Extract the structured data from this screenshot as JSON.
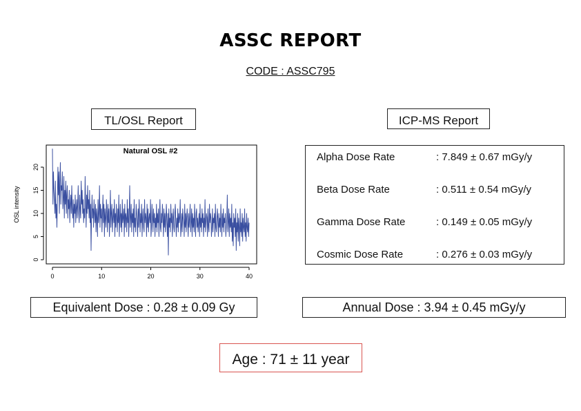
{
  "report": {
    "title": "ASSC REPORT",
    "code": "CODE : ASSC795"
  },
  "tl_osl": {
    "label": "TL/OSL Report",
    "equivalent_dose": "Equivalent Dose : 0.28 ± 0.09 Gy"
  },
  "icp_ms": {
    "label": "ICP-MS Report",
    "rates": [
      {
        "name": "Alpha Dose Rate",
        "value": ": 7.849 ± 0.67 mGy/y"
      },
      {
        "name": "Beta Dose Rate",
        "value": ": 0.511 ± 0.54 mGy/y"
      },
      {
        "name": "Gamma Dose Rate",
        "value": ": 0.149 ± 0.05 mGy/y"
      },
      {
        "name": "Cosmic Dose Rate",
        "value": ": 0.276 ± 0.03 mGy/y"
      }
    ],
    "annual_dose": "Annual Dose : 3.94 ± 0.45 mGy/y"
  },
  "age": "Age : 71 ± 11 year",
  "colors": {
    "line": "#3a4fa0",
    "age_border": "#d9534f"
  },
  "chart_data": {
    "type": "line",
    "title": "Natural OSL #2",
    "xlabel": "",
    "ylabel": "OSL intensity",
    "xlim": [
      0,
      40
    ],
    "ylim": [
      0,
      24
    ],
    "xticks": [
      0,
      10,
      20,
      30,
      40
    ],
    "yticks": [
      0,
      5,
      10,
      15,
      20
    ],
    "grid": false,
    "series": [
      {
        "values": [
          24,
          12,
          19,
          15,
          13,
          10,
          17,
          9,
          12,
          7,
          13,
          20,
          14,
          19,
          10,
          17,
          21,
          12,
          16,
          15,
          19,
          11,
          13,
          18,
          9,
          15,
          12,
          17,
          10,
          14,
          16,
          9,
          13,
          11,
          15,
          8,
          12,
          14,
          10,
          16,
          11,
          9,
          13,
          7,
          12,
          10,
          14,
          8,
          11,
          13,
          9,
          12,
          16,
          10,
          8,
          14,
          11,
          9,
          17,
          12,
          15,
          10,
          13,
          8,
          11,
          9,
          18,
          12,
          7,
          14,
          10,
          16,
          11,
          13,
          9,
          15,
          8,
          12,
          2,
          10,
          14,
          9,
          11,
          7,
          13,
          10,
          8,
          12,
          6,
          11,
          9,
          5,
          13,
          8,
          10,
          16,
          7,
          12,
          9,
          11,
          6,
          10,
          14,
          8,
          12,
          5,
          11,
          9,
          7,
          13,
          10,
          6,
          12,
          8,
          11,
          5,
          9,
          15,
          7,
          10,
          12,
          6,
          9,
          11,
          8,
          13,
          5,
          10,
          7,
          12,
          9,
          6,
          11,
          8,
          14,
          5,
          9,
          12,
          7,
          10,
          6,
          13,
          8,
          9,
          11,
          5,
          12,
          7,
          10,
          9,
          6,
          13,
          8,
          11,
          5,
          10,
          16,
          7,
          9,
          12,
          6,
          10,
          8,
          11,
          5,
          13,
          7,
          9,
          6,
          12,
          10,
          8,
          5,
          11,
          7,
          13,
          9,
          6,
          10,
          8,
          12,
          5,
          9,
          11,
          7,
          6,
          13,
          8,
          10,
          9,
          5,
          12,
          7,
          11,
          6,
          9,
          10,
          8,
          13,
          5,
          7,
          12,
          9,
          6,
          11,
          8,
          10,
          5,
          9,
          7,
          12,
          6,
          10,
          8,
          11,
          5,
          9,
          13,
          7,
          6,
          10,
          8,
          12,
          9,
          5,
          11,
          7,
          10,
          6,
          9,
          12,
          8,
          5,
          10,
          1,
          11,
          7,
          9,
          6,
          12,
          8,
          10,
          5,
          9,
          11,
          7,
          6,
          10,
          12,
          8,
          5,
          9,
          7,
          11,
          6,
          10,
          8,
          9,
          13,
          5,
          7,
          10,
          6,
          11,
          9,
          8,
          5,
          12,
          7,
          10,
          6,
          9,
          11,
          8,
          5,
          10,
          7,
          9,
          12,
          6,
          8,
          11,
          5,
          10,
          7,
          9,
          6,
          12,
          8,
          5,
          10,
          11,
          7,
          9,
          6,
          8,
          10,
          5,
          12,
          7,
          9,
          6,
          11,
          8,
          10,
          5,
          9,
          7,
          13,
          6,
          8,
          10,
          9,
          5,
          11,
          7,
          6,
          12,
          8,
          10,
          9,
          5,
          7,
          11,
          6,
          9,
          8,
          10,
          5,
          12,
          7,
          6,
          9,
          11,
          8,
          5,
          10,
          7,
          9,
          6,
          12,
          8,
          5,
          10,
          7,
          11,
          6,
          9,
          8,
          10,
          5,
          7,
          9,
          14,
          6,
          8,
          11,
          5,
          10,
          7,
          9,
          6,
          12,
          4,
          8,
          3,
          10,
          7,
          9,
          5,
          11,
          2,
          8,
          6,
          10,
          4,
          9,
          7,
          3,
          11,
          6,
          8,
          5,
          10,
          4,
          9,
          7,
          6,
          11,
          5,
          8,
          4,
          10,
          7,
          6,
          9,
          5,
          8
        ]
      }
    ]
  }
}
